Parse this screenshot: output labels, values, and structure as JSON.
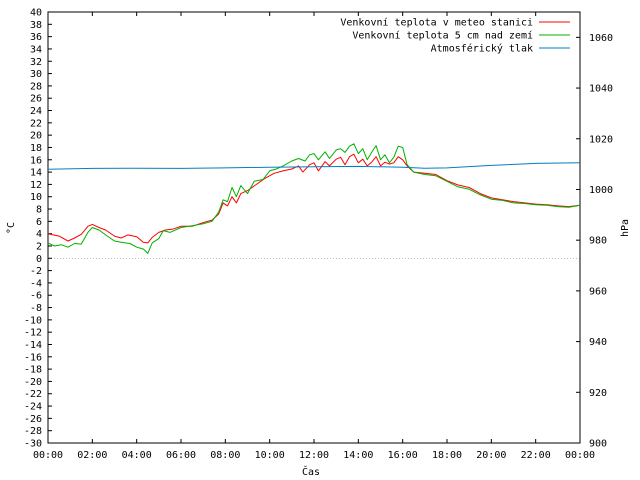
{
  "chart_data": {
    "type": "line",
    "title": "",
    "xlabel": "Čas",
    "ylabel": "°C",
    "y2label": "hPa",
    "x_ticks": [
      "00:00",
      "02:00",
      "04:00",
      "06:00",
      "08:00",
      "10:00",
      "12:00",
      "14:00",
      "16:00",
      "18:00",
      "20:00",
      "22:00",
      "00:00"
    ],
    "x_range_hours": [
      0,
      24
    ],
    "ylim": [
      -30,
      40
    ],
    "y_tick_step": 2,
    "y2lim": [
      900,
      1070
    ],
    "y2_ticks": [
      900,
      920,
      940,
      960,
      980,
      1000,
      1020,
      1040,
      1060
    ],
    "grid": false,
    "legend_position": "top-right",
    "series": [
      {
        "name": "Venkovní teplota v meteo stanici",
        "color": "#ff0000",
        "axis": "left",
        "points": [
          [
            0.0,
            4.0
          ],
          [
            0.5,
            3.6
          ],
          [
            0.9,
            2.8
          ],
          [
            1.2,
            3.3
          ],
          [
            1.5,
            3.9
          ],
          [
            1.8,
            5.2
          ],
          [
            2.0,
            5.5
          ],
          [
            2.3,
            5.0
          ],
          [
            2.6,
            4.6
          ],
          [
            3.0,
            3.6
          ],
          [
            3.3,
            3.3
          ],
          [
            3.6,
            3.8
          ],
          [
            4.0,
            3.5
          ],
          [
            4.3,
            2.6
          ],
          [
            4.5,
            2.5
          ],
          [
            4.7,
            3.4
          ],
          [
            5.0,
            4.2
          ],
          [
            5.3,
            4.6
          ],
          [
            5.6,
            4.7
          ],
          [
            6.0,
            5.2
          ],
          [
            6.5,
            5.2
          ],
          [
            7.0,
            5.8
          ],
          [
            7.4,
            6.2
          ],
          [
            7.7,
            7.2
          ],
          [
            7.9,
            9.0
          ],
          [
            8.1,
            8.5
          ],
          [
            8.3,
            10.0
          ],
          [
            8.5,
            9.0
          ],
          [
            8.7,
            10.5
          ],
          [
            9.0,
            11.0
          ],
          [
            9.4,
            12.0
          ],
          [
            9.8,
            13.0
          ],
          [
            10.2,
            13.8
          ],
          [
            10.6,
            14.2
          ],
          [
            11.0,
            14.5
          ],
          [
            11.3,
            15.0
          ],
          [
            11.5,
            14.0
          ],
          [
            11.8,
            15.2
          ],
          [
            12.0,
            15.5
          ],
          [
            12.2,
            14.2
          ],
          [
            12.5,
            15.7
          ],
          [
            12.7,
            15.0
          ],
          [
            13.0,
            16.1
          ],
          [
            13.2,
            16.4
          ],
          [
            13.4,
            15.2
          ],
          [
            13.6,
            16.5
          ],
          [
            13.8,
            16.9
          ],
          [
            14.0,
            15.5
          ],
          [
            14.2,
            16.1
          ],
          [
            14.4,
            15.0
          ],
          [
            14.6,
            15.6
          ],
          [
            14.8,
            16.5
          ],
          [
            15.0,
            15.0
          ],
          [
            15.2,
            15.6
          ],
          [
            15.4,
            15.3
          ],
          [
            15.6,
            15.5
          ],
          [
            15.8,
            16.5
          ],
          [
            16.0,
            16.0
          ],
          [
            16.2,
            15.0
          ],
          [
            16.5,
            14.0
          ],
          [
            17.0,
            13.8
          ],
          [
            17.5,
            13.6
          ],
          [
            18.0,
            12.6
          ],
          [
            18.5,
            11.9
          ],
          [
            19.0,
            11.5
          ],
          [
            19.5,
            10.5
          ],
          [
            20.0,
            9.8
          ],
          [
            20.5,
            9.5
          ],
          [
            21.0,
            9.2
          ],
          [
            21.5,
            9.0
          ],
          [
            22.0,
            8.8
          ],
          [
            22.5,
            8.7
          ],
          [
            23.0,
            8.5
          ],
          [
            23.5,
            8.4
          ],
          [
            24.0,
            8.6
          ]
        ]
      },
      {
        "name": "Venkovní teplota 5 cm nad zemí",
        "color": "#00b000",
        "axis": "left",
        "points": [
          [
            0.0,
            2.5
          ],
          [
            0.3,
            2.0
          ],
          [
            0.6,
            2.2
          ],
          [
            0.9,
            1.8
          ],
          [
            1.2,
            2.4
          ],
          [
            1.5,
            2.3
          ],
          [
            1.8,
            4.2
          ],
          [
            2.0,
            5.0
          ],
          [
            2.3,
            4.6
          ],
          [
            2.6,
            3.8
          ],
          [
            3.0,
            2.8
          ],
          [
            3.3,
            2.6
          ],
          [
            3.7,
            2.4
          ],
          [
            4.0,
            1.8
          ],
          [
            4.3,
            1.5
          ],
          [
            4.5,
            0.8
          ],
          [
            4.7,
            2.5
          ],
          [
            5.0,
            3.2
          ],
          [
            5.2,
            4.5
          ],
          [
            5.5,
            4.2
          ],
          [
            6.0,
            5.0
          ],
          [
            6.5,
            5.3
          ],
          [
            7.0,
            5.6
          ],
          [
            7.4,
            6.0
          ],
          [
            7.7,
            7.5
          ],
          [
            7.9,
            9.5
          ],
          [
            8.1,
            9.2
          ],
          [
            8.3,
            11.5
          ],
          [
            8.5,
            10.0
          ],
          [
            8.7,
            11.8
          ],
          [
            9.0,
            10.5
          ],
          [
            9.3,
            12.5
          ],
          [
            9.7,
            12.8
          ],
          [
            10.0,
            14.2
          ],
          [
            10.3,
            14.5
          ],
          [
            10.6,
            15.0
          ],
          [
            11.0,
            15.8
          ],
          [
            11.3,
            16.2
          ],
          [
            11.6,
            15.8
          ],
          [
            11.8,
            16.8
          ],
          [
            12.0,
            17.0
          ],
          [
            12.2,
            16.0
          ],
          [
            12.5,
            17.3
          ],
          [
            12.7,
            16.2
          ],
          [
            13.0,
            17.6
          ],
          [
            13.2,
            17.8
          ],
          [
            13.4,
            17.2
          ],
          [
            13.6,
            18.2
          ],
          [
            13.8,
            18.6
          ],
          [
            14.0,
            17.0
          ],
          [
            14.2,
            17.8
          ],
          [
            14.4,
            16.0
          ],
          [
            14.6,
            17.2
          ],
          [
            14.8,
            18.3
          ],
          [
            15.0,
            16.0
          ],
          [
            15.2,
            16.8
          ],
          [
            15.4,
            15.5
          ],
          [
            15.6,
            16.4
          ],
          [
            15.8,
            18.2
          ],
          [
            16.0,
            18.0
          ],
          [
            16.2,
            15.2
          ],
          [
            16.5,
            14.0
          ],
          [
            17.0,
            13.6
          ],
          [
            17.5,
            13.4
          ],
          [
            18.0,
            12.5
          ],
          [
            18.5,
            11.6
          ],
          [
            19.0,
            11.2
          ],
          [
            19.5,
            10.3
          ],
          [
            20.0,
            9.6
          ],
          [
            20.5,
            9.4
          ],
          [
            21.0,
            9.0
          ],
          [
            21.5,
            8.9
          ],
          [
            22.0,
            8.7
          ],
          [
            22.5,
            8.6
          ],
          [
            23.0,
            8.4
          ],
          [
            23.5,
            8.3
          ],
          [
            24.0,
            8.6
          ]
        ]
      },
      {
        "name": "Atmosférický tlak",
        "color": "#0080c0",
        "axis": "right",
        "points": [
          [
            0.0,
            1008.0
          ],
          [
            2.0,
            1008.3
          ],
          [
            4.0,
            1008.4
          ],
          [
            6.0,
            1008.3
          ],
          [
            8.0,
            1008.5
          ],
          [
            10.0,
            1008.8
          ],
          [
            12.0,
            1009.0
          ],
          [
            14.0,
            1009.1
          ],
          [
            16.0,
            1008.8
          ],
          [
            17.0,
            1008.4
          ],
          [
            18.0,
            1008.5
          ],
          [
            20.0,
            1009.5
          ],
          [
            22.0,
            1010.3
          ],
          [
            24.0,
            1010.5
          ]
        ]
      }
    ]
  }
}
